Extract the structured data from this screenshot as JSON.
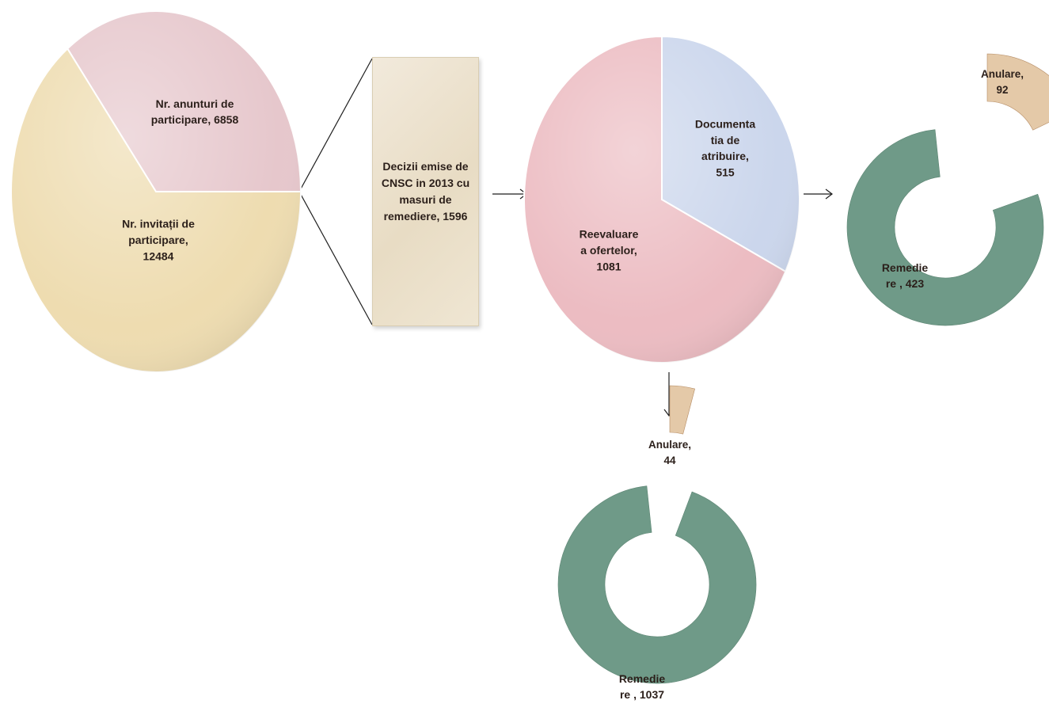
{
  "chart_data": [
    {
      "type": "pie",
      "slices": [
        {
          "label": "Nr. anunturi  de participare",
          "value": 6858,
          "display": "Nr. anunturi  de\nparticipare, 6858",
          "color": "#e6c7cc"
        },
        {
          "label": "Nr. invitații de participare",
          "value": 12484,
          "display": "Nr. invitații de\nparticipare,\n12484",
          "color": "#eedcb0"
        }
      ]
    },
    {
      "type": "bar",
      "label": "Decizii emise de CNSC in 2013 cu masuri de remediere",
      "value": 1596,
      "display": "Decizii emise de\nCNSC in 2013 cu\nmasuri de\nremediere, 1596",
      "color": "#ece3d0"
    },
    {
      "type": "pie",
      "slices": [
        {
          "label": "Documentatia de atribuire",
          "value": 515,
          "display": "Documenta\ntia de\natribuire,\n515",
          "color": "#cbd6ec"
        },
        {
          "label": "Reevaluare a ofertelor",
          "value": 1081,
          "display": "Reevaluare\na ofertelor,\n1081",
          "color": "#ecbcc2"
        }
      ]
    },
    {
      "type": "pie",
      "style": "doughnut",
      "slices": [
        {
          "label": "Anulare",
          "value": 92,
          "display": "Anulare,\n92",
          "color": "#e4c9a8"
        },
        {
          "label": "Remediere",
          "value": 423,
          "display": "Remedie\nre , 423",
          "color": "#6f9a88"
        }
      ]
    },
    {
      "type": "pie",
      "style": "doughnut",
      "slices": [
        {
          "label": "Anulare",
          "value": 44,
          "display": "Anulare,\n44",
          "color": "#e4c9a8"
        },
        {
          "label": "Remediere",
          "value": 1037,
          "display": "Remedie\nre , 1037",
          "color": "#6f9a88"
        }
      ]
    }
  ]
}
